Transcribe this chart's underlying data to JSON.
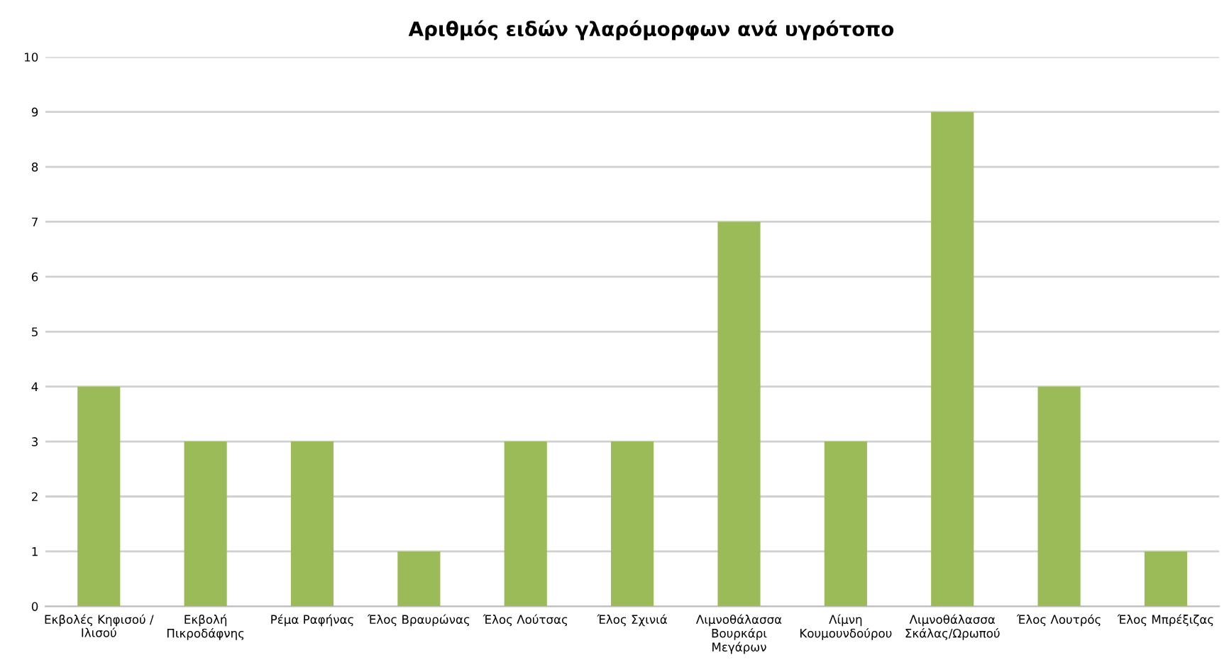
{
  "chart_data": {
    "type": "bar",
    "title": "Αριθμός ειδών γλαρόμορφων ανά υγρότοπο",
    "categories": [
      "Εκβολές Κηφισού /\nΙλισού",
      "Εκβολή\nΠικροδάφνης",
      "Ρέμα Ραφήνας",
      "Έλος Βραυρώνας",
      "Έλος Λούτσας",
      "Έλος Σχινιά",
      "Λιμνοθάλασσα\nΒουρκάρι\nΜεγάρων",
      "Λίμνη\nΚουμουνδούρου",
      "Λιμνοθάλασσα\nΣκάλας/Ωρωπού",
      "Έλος Λουτρός",
      "Έλος Μπρέξιζας"
    ],
    "values": [
      4,
      3,
      3,
      1,
      3,
      3,
      7,
      3,
      9,
      4,
      1
    ],
    "color": "#9bbb59",
    "ylim": [
      0,
      10
    ],
    "yticks": [
      0,
      1,
      2,
      3,
      4,
      5,
      6,
      7,
      8,
      9,
      10
    ],
    "grid": "y"
  }
}
